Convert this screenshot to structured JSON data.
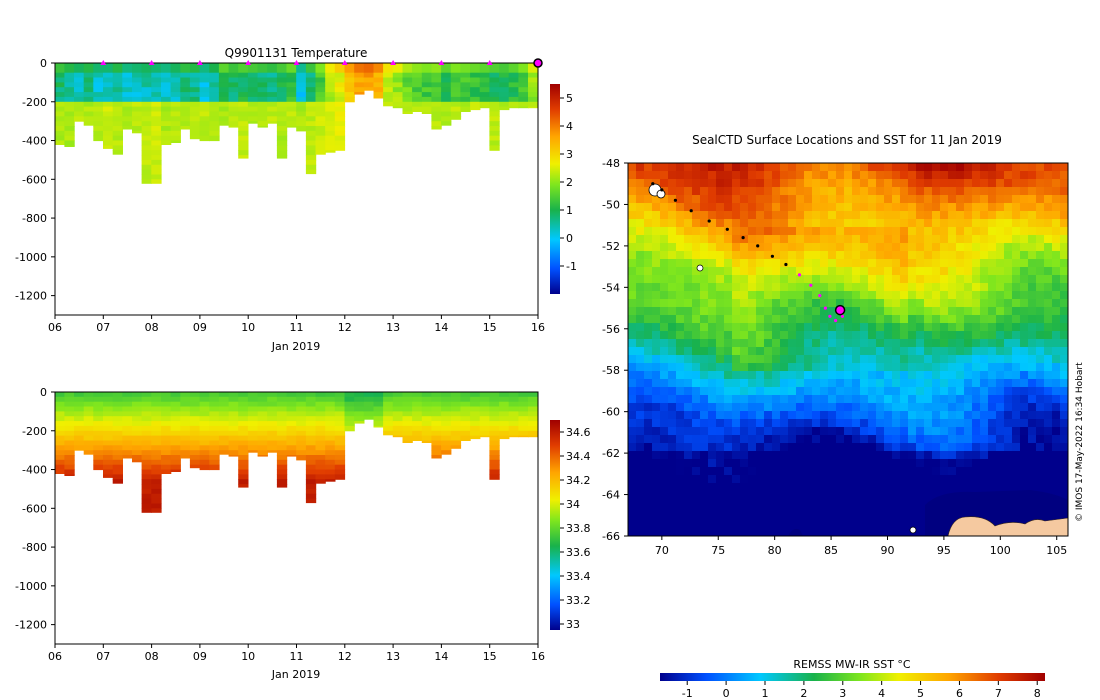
{
  "chart_data": [
    {
      "type": "heatmap",
      "title": "Q9901131  Temperature",
      "xlabel": "Jan 2019",
      "ylabel": "",
      "x_range": [
        6,
        16
      ],
      "x_ticks": [
        "06",
        "07",
        "08",
        "09",
        "10",
        "11",
        "12",
        "13",
        "14",
        "15",
        "16"
      ],
      "ylim": [
        -1300,
        0
      ],
      "y_ticks": [
        0,
        -200,
        -400,
        -600,
        -800,
        -1000,
        -1200
      ],
      "colorbar": {
        "min": -2,
        "max": 5.5,
        "ticks": [
          5,
          4,
          3,
          2,
          1,
          0,
          -1
        ]
      },
      "surface_marker_days": [
        7,
        8,
        9,
        10,
        11,
        12,
        13,
        14,
        15
      ],
      "end_marker_day": 16,
      "profiles": [
        {
          "day": 6.1,
          "depth": 420,
          "surf": 1.0,
          "deep": 2.2
        },
        {
          "day": 6.3,
          "depth": 430,
          "surf": 0.8,
          "deep": 2.2
        },
        {
          "day": 6.5,
          "depth": 300,
          "surf": 0.6,
          "deep": 2.3
        },
        {
          "day": 6.7,
          "depth": 320,
          "surf": 0.8,
          "deep": 2.2
        },
        {
          "day": 6.9,
          "depth": 400,
          "surf": 0.5,
          "deep": 2.3
        },
        {
          "day": 7.1,
          "depth": 440,
          "surf": 0.5,
          "deep": 2.4
        },
        {
          "day": 7.3,
          "depth": 470,
          "surf": 0.8,
          "deep": 2.3
        },
        {
          "day": 7.5,
          "depth": 340,
          "surf": 0.4,
          "deep": 2.2
        },
        {
          "day": 7.7,
          "depth": 360,
          "surf": 0.5,
          "deep": 2.3
        },
        {
          "day": 7.9,
          "depth": 620,
          "surf": 0.6,
          "deep": 2.3
        },
        {
          "day": 8.1,
          "depth": 620,
          "surf": 0.5,
          "deep": 2.4
        },
        {
          "day": 8.3,
          "depth": 420,
          "surf": 0.4,
          "deep": 2.2
        },
        {
          "day": 8.5,
          "depth": 410,
          "surf": 0.6,
          "deep": 2.3
        },
        {
          "day": 8.7,
          "depth": 340,
          "surf": 0.9,
          "deep": 2.2
        },
        {
          "day": 8.9,
          "depth": 390,
          "surf": 0.8,
          "deep": 2.3
        },
        {
          "day": 9.1,
          "depth": 400,
          "surf": 0.4,
          "deep": 2.3
        },
        {
          "day": 9.3,
          "depth": 400,
          "surf": 0.7,
          "deep": 2.2
        },
        {
          "day": 9.5,
          "depth": 320,
          "surf": 1.3,
          "deep": 2.2
        },
        {
          "day": 9.7,
          "depth": 330,
          "surf": 1.0,
          "deep": 2.3
        },
        {
          "day": 9.9,
          "depth": 490,
          "surf": 1.2,
          "deep": 2.3
        },
        {
          "day": 10.1,
          "depth": 310,
          "surf": 1.1,
          "deep": 2.2
        },
        {
          "day": 10.3,
          "depth": 330,
          "surf": 1.0,
          "deep": 2.2
        },
        {
          "day": 10.5,
          "depth": 310,
          "surf": 0.9,
          "deep": 2.3
        },
        {
          "day": 10.7,
          "depth": 490,
          "surf": 1.1,
          "deep": 2.2
        },
        {
          "day": 10.9,
          "depth": 330,
          "surf": 1.4,
          "deep": 2.3
        },
        {
          "day": 11.1,
          "depth": 350,
          "surf": 0.3,
          "deep": 2.2
        },
        {
          "day": 11.3,
          "depth": 570,
          "surf": 1.0,
          "deep": 2.3
        },
        {
          "day": 11.5,
          "depth": 470,
          "surf": 1.6,
          "deep": 2.4
        },
        {
          "day": 11.7,
          "depth": 460,
          "surf": 2.4,
          "deep": 2.5
        },
        {
          "day": 11.9,
          "depth": 450,
          "surf": 2.8,
          "deep": 2.6
        },
        {
          "day": 12.1,
          "depth": 200,
          "surf": 3.4,
          "deep": 2.7
        },
        {
          "day": 12.3,
          "depth": 160,
          "surf": 3.8,
          "deep": 2.9
        },
        {
          "day": 12.5,
          "depth": 140,
          "surf": 3.9,
          "deep": 3.0
        },
        {
          "day": 12.7,
          "depth": 180,
          "surf": 3.6,
          "deep": 2.8
        },
        {
          "day": 12.9,
          "depth": 220,
          "surf": 2.5,
          "deep": 2.4
        },
        {
          "day": 13.1,
          "depth": 230,
          "surf": 2.3,
          "deep": 2.3
        },
        {
          "day": 13.3,
          "depth": 260,
          "surf": 1.9,
          "deep": 2.2
        },
        {
          "day": 13.5,
          "depth": 250,
          "surf": 1.7,
          "deep": 2.3
        },
        {
          "day": 13.7,
          "depth": 260,
          "surf": 1.6,
          "deep": 2.2
        },
        {
          "day": 13.9,
          "depth": 340,
          "surf": 1.7,
          "deep": 2.3
        },
        {
          "day": 14.1,
          "depth": 320,
          "surf": 1.3,
          "deep": 2.2
        },
        {
          "day": 14.3,
          "depth": 290,
          "surf": 1.6,
          "deep": 2.3
        },
        {
          "day": 14.5,
          "depth": 250,
          "surf": 1.5,
          "deep": 2.2
        },
        {
          "day": 14.7,
          "depth": 240,
          "surf": 1.4,
          "deep": 2.3
        },
        {
          "day": 14.9,
          "depth": 230,
          "surf": 1.3,
          "deep": 2.2
        },
        {
          "day": 15.1,
          "depth": 450,
          "surf": 1.2,
          "deep": 2.3
        },
        {
          "day": 15.3,
          "depth": 240,
          "surf": 1.1,
          "deep": 2.2
        },
        {
          "day": 15.5,
          "depth": 230,
          "surf": 1.3,
          "deep": 2.3
        },
        {
          "day": 15.7,
          "depth": 230,
          "surf": 1.6,
          "deep": 2.3
        },
        {
          "day": 15.9,
          "depth": 230,
          "surf": 2.2,
          "deep": 2.4
        }
      ]
    },
    {
      "type": "heatmap",
      "title": "",
      "xlabel": "Jan 2019",
      "ylabel": "",
      "x_range": [
        6,
        16
      ],
      "x_ticks": [
        "06",
        "07",
        "08",
        "09",
        "10",
        "11",
        "12",
        "13",
        "14",
        "15",
        "16"
      ],
      "ylim": [
        -1300,
        0
      ],
      "y_ticks": [
        0,
        -200,
        -400,
        -600,
        -800,
        -1000,
        -1200
      ],
      "colorbar": {
        "min": 32.95,
        "max": 34.7,
        "ticks": [
          "34.6",
          "34.4",
          "34.2",
          "34",
          "33.8",
          "33.6",
          "33.4",
          "33.2",
          "33"
        ]
      },
      "profiles_source": "same profiles as temperature panel; salinity rises from ~33.8 at surface to ~34.6 at depth"
    },
    {
      "type": "heatmap",
      "title": "SealCTD Surface Locations and SST for 11 Jan 2019",
      "xlabel": "",
      "ylabel": "",
      "x_range": [
        67,
        106
      ],
      "x_ticks": [
        70,
        75,
        80,
        85,
        90,
        95,
        100,
        105
      ],
      "y_range": [
        -66,
        -48
      ],
      "y_ticks": [
        -48,
        -50,
        -52,
        -54,
        -56,
        -58,
        -60,
        -62,
        -64,
        -66
      ],
      "colorbar": {
        "label": "REMSS MW-IR SST °C",
        "min": -1.7,
        "max": 8.2,
        "ticks": [
          -1,
          0,
          1,
          2,
          3,
          4,
          5,
          6,
          7,
          8
        ]
      },
      "track": [
        [
          69.2,
          -49.0
        ],
        [
          70.0,
          -49.3
        ],
        [
          71.2,
          -49.8
        ],
        [
          72.6,
          -50.3
        ],
        [
          74.2,
          -50.8
        ],
        [
          75.8,
          -51.2
        ],
        [
          77.2,
          -51.6
        ],
        [
          78.5,
          -52.0
        ],
        [
          79.8,
          -52.5
        ],
        [
          81.0,
          -52.9
        ],
        [
          82.2,
          -53.4
        ],
        [
          83.2,
          -53.9
        ],
        [
          84.0,
          -54.4
        ],
        [
          84.5,
          -55.0
        ],
        [
          84.9,
          -55.4
        ],
        [
          85.4,
          -55.6
        ],
        [
          86.0,
          -55.4
        ],
        [
          85.8,
          -55.1
        ]
      ],
      "recent_track_from_index": 10,
      "current_position": [
        85.8,
        -55.1
      ],
      "credit": "© IMOS 17-May-2022 16:34 Hobart"
    }
  ]
}
